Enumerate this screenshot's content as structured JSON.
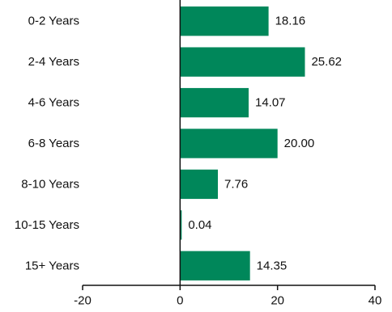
{
  "chart_data": {
    "type": "bar",
    "orientation": "horizontal",
    "title": "",
    "xlabel": "",
    "ylabel": "",
    "categories": [
      "0-2 Years",
      "2-4 Years",
      "4-6 Years",
      "6-8 Years",
      "8-10 Years",
      "10-15 Years",
      "15+ Years"
    ],
    "values": [
      18.16,
      25.62,
      14.07,
      20.0,
      7.76,
      0.04,
      14.35
    ],
    "value_labels": [
      "18.16",
      "25.62",
      "14.07",
      "20.00",
      "7.76",
      "0.04",
      "14.35"
    ],
    "xlim": [
      -20,
      40
    ],
    "x_ticks": [
      -20,
      0,
      20,
      40
    ],
    "x_tick_labels": [
      "-20",
      "0",
      "20",
      "40"
    ],
    "grid": false,
    "legend": "none",
    "bar_color": "#00875a"
  }
}
